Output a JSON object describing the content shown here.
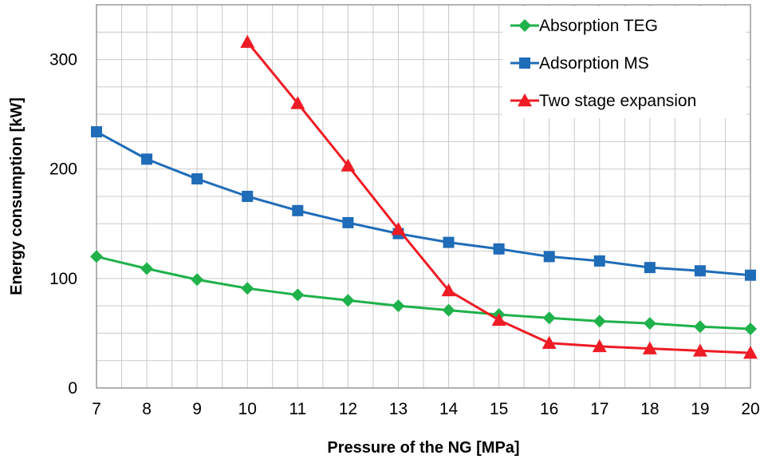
{
  "chart_data": {
    "type": "line",
    "title": "",
    "xlabel": "Pressure of the NG [MPa]",
    "ylabel": "Energy consumption [kW]",
    "x": [
      7,
      8,
      9,
      10,
      11,
      12,
      13,
      14,
      15,
      16,
      17,
      18,
      19,
      20
    ],
    "xlim": [
      7,
      20
    ],
    "ylim": [
      0,
      350
    ],
    "yticks": [
      0,
      100,
      200,
      300
    ],
    "grid": true,
    "legend_position": "top-right",
    "series": [
      {
        "name": "Absorption TEG",
        "color": "#1fb14a",
        "marker": "diamond",
        "x": [
          7,
          8,
          9,
          10,
          11,
          12,
          13,
          14,
          15,
          16,
          17,
          18,
          19,
          20
        ],
        "values": [
          120,
          109,
          99,
          91,
          85,
          80,
          75,
          71,
          67,
          64,
          61,
          59,
          56,
          54
        ]
      },
      {
        "name": "Adsorption MS",
        "color": "#1f6cb8",
        "marker": "square",
        "x": [
          7,
          8,
          9,
          10,
          11,
          12,
          13,
          14,
          15,
          16,
          17,
          18,
          19,
          20
        ],
        "values": [
          234,
          209,
          191,
          175,
          162,
          151,
          141,
          133,
          127,
          120,
          116,
          110,
          107,
          103
        ]
      },
      {
        "name": "Two stage expansion",
        "color": "#ee1c25",
        "marker": "triangle",
        "x": [
          10,
          11,
          12,
          13,
          14,
          15,
          16,
          17,
          18,
          19,
          20
        ],
        "values": [
          316,
          260,
          203,
          145,
          89,
          62,
          41,
          38,
          36,
          34,
          32
        ]
      }
    ]
  }
}
